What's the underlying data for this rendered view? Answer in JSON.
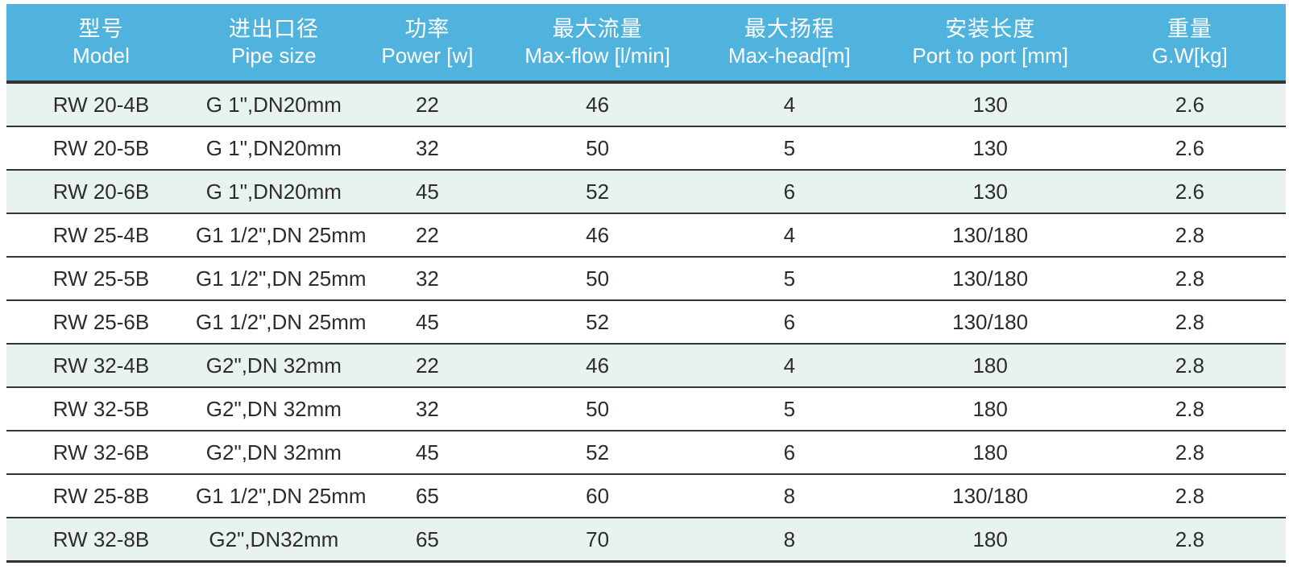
{
  "table": {
    "columns": [
      {
        "zh": "型号",
        "en": "Model"
      },
      {
        "zh": "进出口径",
        "en": "Pipe size"
      },
      {
        "zh": "功率",
        "en": "Power [w]"
      },
      {
        "zh": "最大流量",
        "en": "Max-flow [l/min]"
      },
      {
        "zh": "最大扬程",
        "en": "Max-head[m]"
      },
      {
        "zh": "安装长度",
        "en": "Port to port [mm]"
      },
      {
        "zh": "重量",
        "en": "G.W[kg]"
      }
    ],
    "rows": [
      {
        "model": "RW 20-4B",
        "pipe": "G 1\",DN20mm",
        "power": "22",
        "flow": "46",
        "head": "4",
        "port": "130",
        "weight": "2.6",
        "shaded": true
      },
      {
        "model": "RW 20-5B",
        "pipe": "G 1\",DN20mm",
        "power": "32",
        "flow": "50",
        "head": "5",
        "port": "130",
        "weight": "2.6",
        "shaded": false
      },
      {
        "model": "RW 20-6B",
        "pipe": "G 1\",DN20mm",
        "power": "45",
        "flow": "52",
        "head": "6",
        "port": "130",
        "weight": "2.6",
        "shaded": true
      },
      {
        "model": "RW 25-4B",
        "pipe": "G1 1/2\",DN 25mm",
        "power": "22",
        "flow": "46",
        "head": "4",
        "port": "130/180",
        "weight": "2.8",
        "shaded": false
      },
      {
        "model": "RW 25-5B",
        "pipe": "G1 1/2\",DN 25mm",
        "power": "32",
        "flow": "50",
        "head": "5",
        "port": "130/180",
        "weight": "2.8",
        "shaded": false
      },
      {
        "model": "RW 25-6B",
        "pipe": "G1 1/2\",DN 25mm",
        "power": "45",
        "flow": "52",
        "head": "6",
        "port": "130/180",
        "weight": "2.8",
        "shaded": false
      },
      {
        "model": "RW 32-4B",
        "pipe": "G2\",DN 32mm",
        "power": "22",
        "flow": "46",
        "head": "4",
        "port": "180",
        "weight": "2.8",
        "shaded": true
      },
      {
        "model": "RW 32-5B",
        "pipe": "G2\",DN 32mm",
        "power": "32",
        "flow": "50",
        "head": "5",
        "port": "180",
        "weight": "2.8",
        "shaded": false
      },
      {
        "model": "RW 32-6B",
        "pipe": "G2\",DN 32mm",
        "power": "45",
        "flow": "52",
        "head": "6",
        "port": "180",
        "weight": "2.8",
        "shaded": false
      },
      {
        "model": "RW 25-8B",
        "pipe": "G1 1/2\",DN 25mm",
        "power": "65",
        "flow": "60",
        "head": "8",
        "port": "130/180",
        "weight": "2.8",
        "shaded": false
      },
      {
        "model": "RW 32-8B",
        "pipe": "G2\",DN32mm",
        "power": "65",
        "flow": "70",
        "head": "8",
        "port": "180",
        "weight": "2.8",
        "shaded": true
      }
    ]
  },
  "colors": {
    "header_bg": "#4fb3dd",
    "header_text": "#ffffff",
    "row_tint": "#e8f3f1",
    "row_white": "#ffffff",
    "border": "#333333",
    "body_text": "#2f2b28"
  }
}
